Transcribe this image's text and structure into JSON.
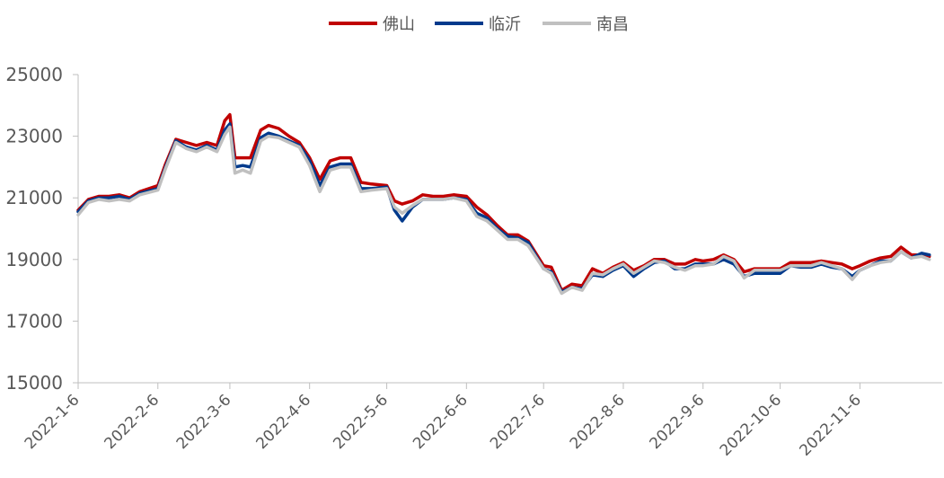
{
  "chart_data": {
    "type": "line",
    "title": "",
    "xlabel": "",
    "ylabel": "",
    "ylim": [
      15000,
      25000
    ],
    "y_ticks": [
      "25000",
      "23000",
      "21000",
      "19000",
      "17000",
      "15000"
    ],
    "x_ticks": [
      "2022-1-6",
      "2022-2-6",
      "2022-3-6",
      "2022-4-6",
      "2022-5-6",
      "2022-6-6",
      "2022-7-6",
      "2022-8-6",
      "2022-9-6",
      "2022-10-6",
      "2022-11-6"
    ],
    "grid": false,
    "legend_position": "top-center",
    "x_dates": [
      "2022-01-06",
      "2022-01-10",
      "2022-01-14",
      "2022-01-18",
      "2022-01-22",
      "2022-01-26",
      "2022-01-30",
      "2022-02-06",
      "2022-02-09",
      "2022-02-13",
      "2022-02-17",
      "2022-02-21",
      "2022-02-25",
      "2022-03-01",
      "2022-03-04",
      "2022-03-06",
      "2022-03-08",
      "2022-03-11",
      "2022-03-14",
      "2022-03-18",
      "2022-03-21",
      "2022-03-25",
      "2022-03-29",
      "2022-04-02",
      "2022-04-06",
      "2022-04-10",
      "2022-04-14",
      "2022-04-18",
      "2022-04-22",
      "2022-04-26",
      "2022-04-30",
      "2022-05-06",
      "2022-05-09",
      "2022-05-12",
      "2022-05-16",
      "2022-05-20",
      "2022-05-24",
      "2022-05-28",
      "2022-06-01",
      "2022-06-06",
      "2022-06-10",
      "2022-06-14",
      "2022-06-18",
      "2022-06-22",
      "2022-06-26",
      "2022-06-30",
      "2022-07-06",
      "2022-07-09",
      "2022-07-13",
      "2022-07-17",
      "2022-07-21",
      "2022-07-25",
      "2022-07-29",
      "2022-08-02",
      "2022-08-06",
      "2022-08-10",
      "2022-08-14",
      "2022-08-18",
      "2022-08-22",
      "2022-08-26",
      "2022-08-30",
      "2022-09-03",
      "2022-09-06",
      "2022-09-10",
      "2022-09-14",
      "2022-09-18",
      "2022-09-22",
      "2022-09-26",
      "2022-09-30",
      "2022-10-06",
      "2022-10-10",
      "2022-10-14",
      "2022-10-18",
      "2022-10-22",
      "2022-10-26",
      "2022-10-30",
      "2022-11-03",
      "2022-11-06",
      "2022-11-10",
      "2022-11-14",
      "2022-11-18",
      "2022-11-22",
      "2022-11-26",
      "2022-11-30",
      "2022-12-03"
    ],
    "series": [
      {
        "name": "佛山",
        "color": "#C00000",
        "values": [
          20600,
          20950,
          21050,
          21050,
          21100,
          21000,
          21200,
          21400,
          22100,
          22900,
          22800,
          22700,
          22800,
          22700,
          23500,
          23700,
          22300,
          22300,
          22300,
          23200,
          23350,
          23250,
          23000,
          22800,
          22300,
          21600,
          22200,
          22300,
          22300,
          21500,
          21450,
          21400,
          20900,
          20800,
          20900,
          21100,
          21050,
          21050,
          21100,
          21050,
          20700,
          20450,
          20100,
          19800,
          19800,
          19600,
          18800,
          18750,
          18000,
          18200,
          18150,
          18700,
          18550,
          18750,
          18900,
          18650,
          18800,
          19000,
          19000,
          18850,
          18850,
          19000,
          18950,
          19000,
          19150,
          19000,
          18600,
          18700,
          18700,
          18700,
          18900,
          18900,
          18900,
          18950,
          18900,
          18850,
          18700,
          18800,
          18950,
          19050,
          19100,
          19400,
          19150,
          19150,
          19100
        ]
      },
      {
        "name": "临沂",
        "color": "#003A8C",
        "values": [
          20550,
          20900,
          21000,
          21000,
          21050,
          20950,
          21150,
          21300,
          22000,
          22850,
          22650,
          22550,
          22700,
          22550,
          23200,
          23400,
          22000,
          22050,
          22000,
          22950,
          23100,
          23000,
          22850,
          22700,
          22200,
          21400,
          22000,
          22100,
          22100,
          21300,
          21300,
          21350,
          20600,
          20250,
          20700,
          20950,
          20950,
          20950,
          21000,
          20950,
          20500,
          20350,
          20000,
          19750,
          19700,
          19550,
          18700,
          18600,
          17950,
          18100,
          18050,
          18500,
          18450,
          18650,
          18800,
          18450,
          18700,
          18900,
          18950,
          18700,
          18700,
          18850,
          18850,
          18850,
          19000,
          18850,
          18450,
          18550,
          18550,
          18550,
          18800,
          18750,
          18750,
          18850,
          18750,
          18700,
          18450,
          18650,
          18800,
          18950,
          18950,
          19250,
          19050,
          19200,
          19150
        ]
      },
      {
        "name": "南昌",
        "color": "#C0C0C0",
        "values": [
          20450,
          20850,
          20950,
          20900,
          20950,
          20900,
          21100,
          21250,
          21950,
          22800,
          22600,
          22500,
          22650,
          22500,
          23050,
          23300,
          21800,
          21900,
          21800,
          22850,
          23000,
          22950,
          22800,
          22650,
          22050,
          21200,
          21900,
          22000,
          22000,
          21200,
          21250,
          21300,
          20700,
          20500,
          20750,
          20950,
          20950,
          20950,
          21000,
          20900,
          20400,
          20250,
          19950,
          19650,
          19650,
          19450,
          18700,
          18550,
          17900,
          18100,
          18000,
          18550,
          18500,
          18700,
          18850,
          18550,
          18750,
          18950,
          18900,
          18750,
          18650,
          18800,
          18800,
          18850,
          19100,
          18950,
          18400,
          18650,
          18650,
          18650,
          18800,
          18800,
          18800,
          18900,
          18800,
          18700,
          18350,
          18650,
          18800,
          18900,
          18950,
          19250,
          19050,
          19100,
          19000
        ]
      }
    ]
  }
}
